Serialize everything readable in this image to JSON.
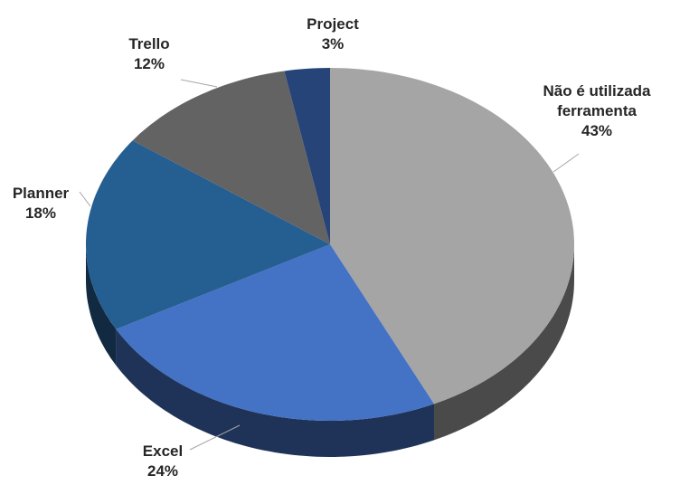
{
  "chart_data": {
    "type": "pie",
    "categories": [
      "Não é utilizada ferramenta",
      "Excel",
      "Planner",
      "Trello",
      "Project"
    ],
    "values": [
      43,
      24,
      18,
      12,
      3
    ],
    "value_labels": [
      "43%",
      "24%",
      "18%",
      "12%",
      "3%"
    ],
    "colors": [
      "#a5a5a5",
      "#4472c4",
      "#255e91",
      "#636363",
      "#264478"
    ]
  }
}
